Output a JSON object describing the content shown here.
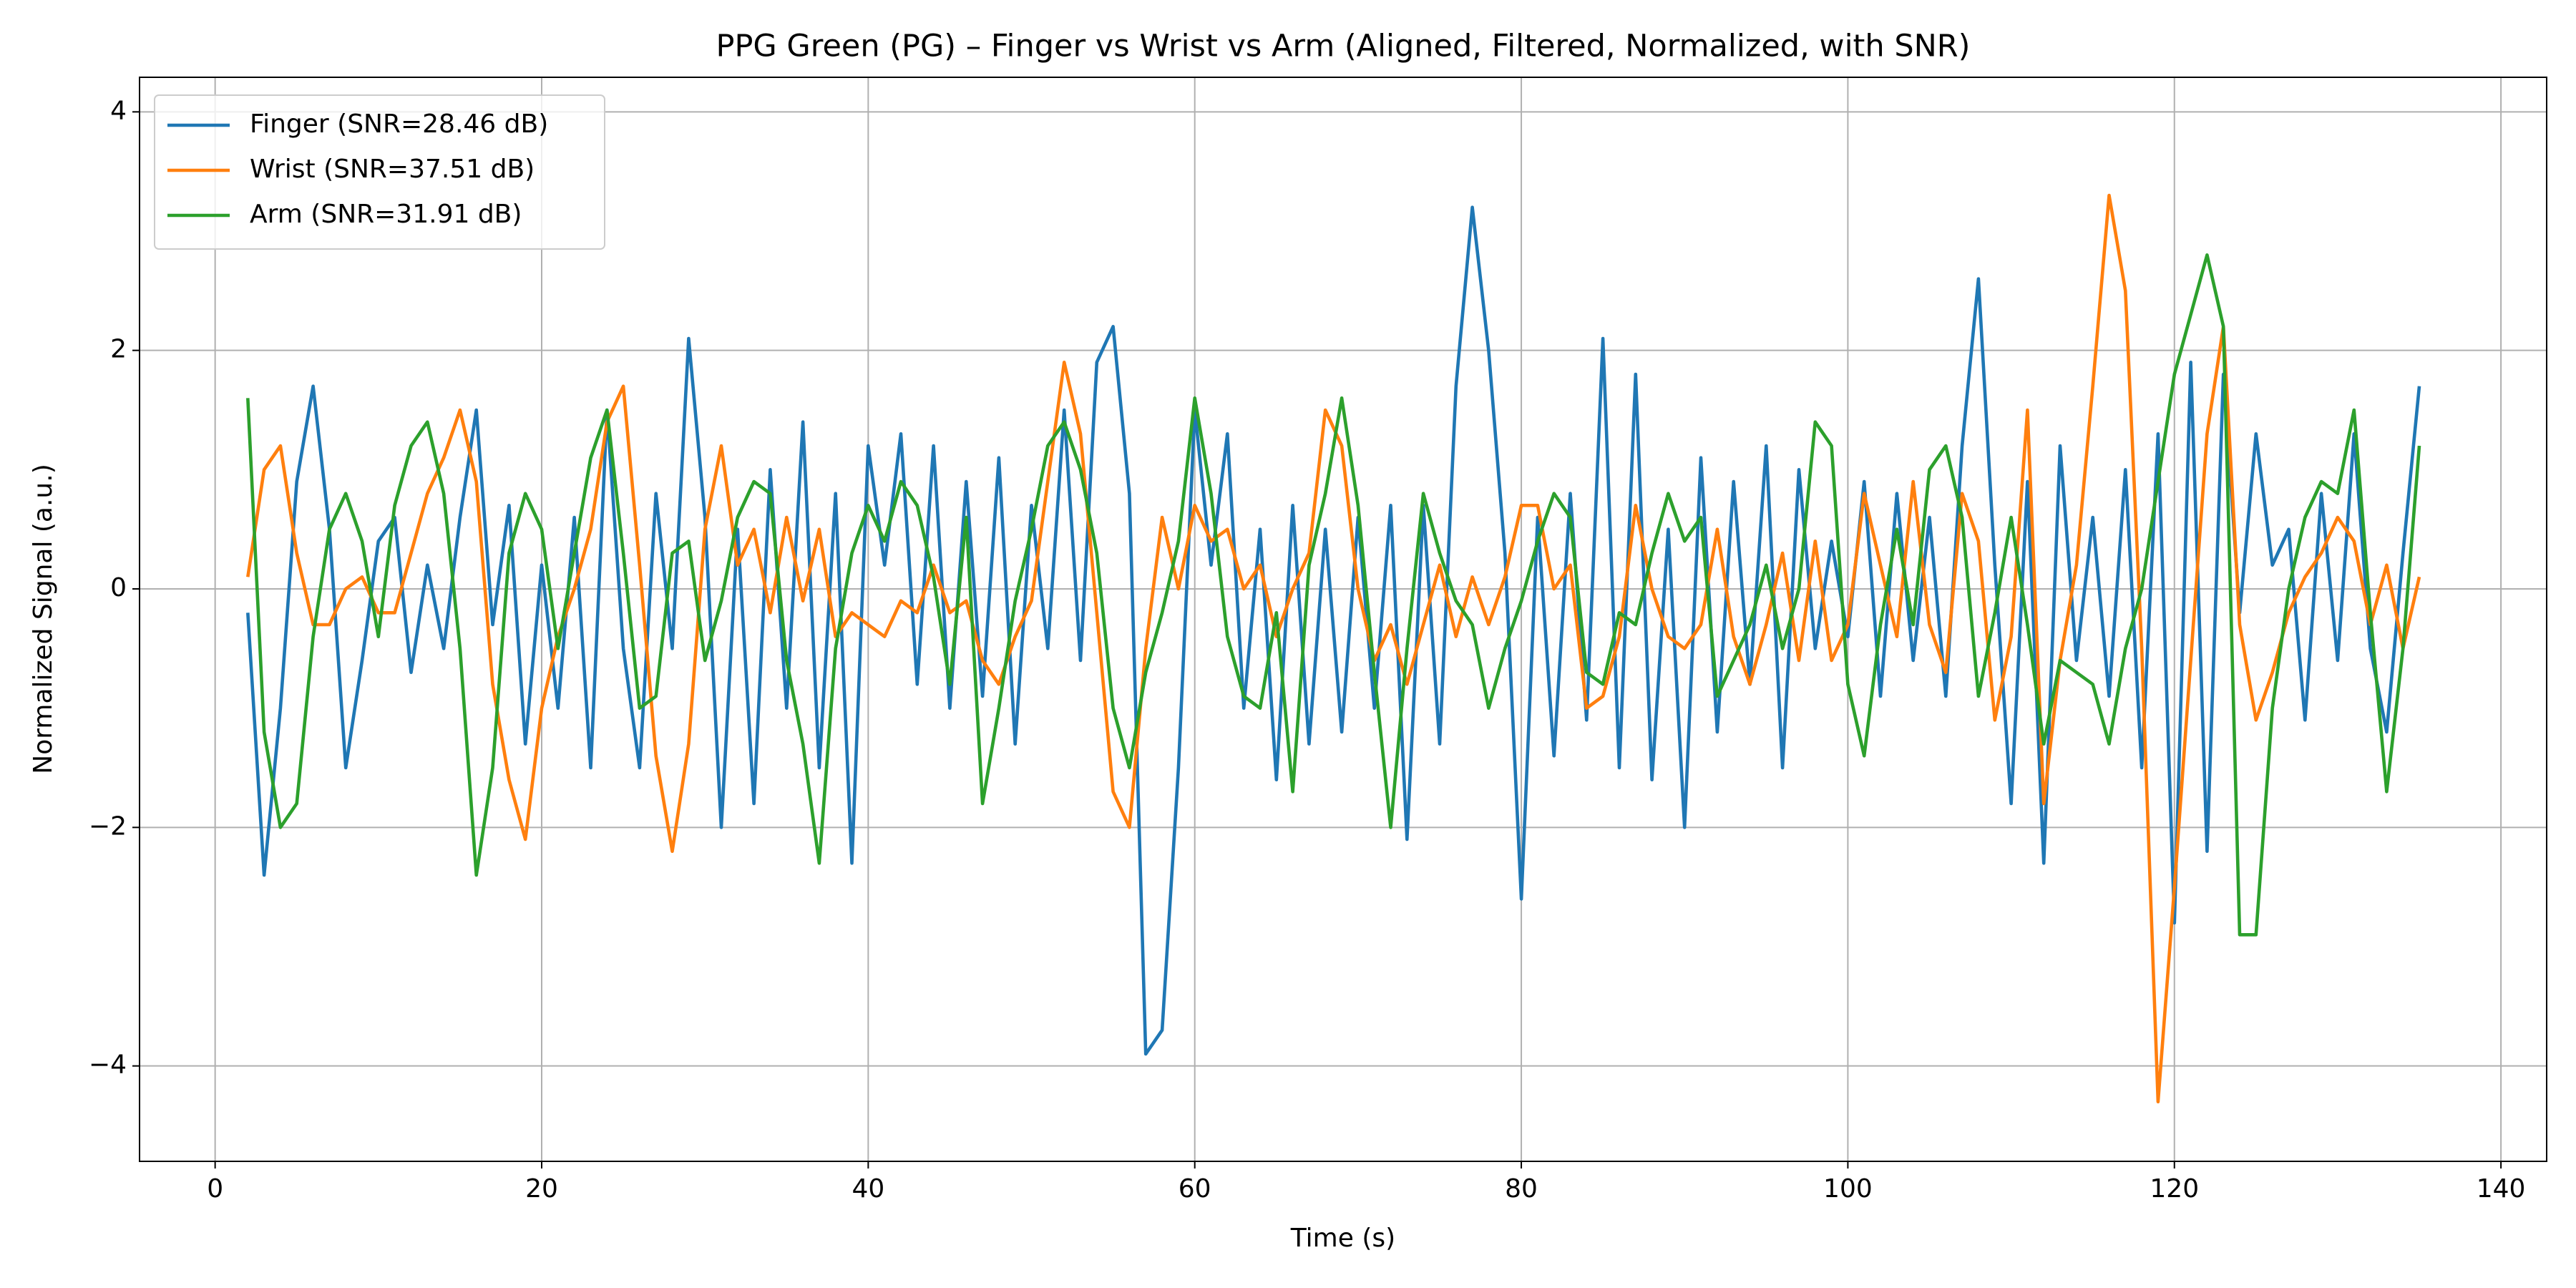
{
  "chart_data": {
    "type": "line",
    "title": "PPG Green (PG) – Finger vs Wrist vs Arm (Aligned, Filtered, Normalized, with SNR)",
    "x_label": "Time (s)",
    "y_label": "Normalized Signal (a.u.)",
    "xlim": [
      -4.63,
      142.8
    ],
    "ylim": [
      -4.8,
      4.29
    ],
    "xticks": [
      0,
      20,
      40,
      60,
      80,
      100,
      120,
      140
    ],
    "yticks": [
      {
        "value": -4,
        "label": "−4"
      },
      {
        "value": -2,
        "label": "−2"
      },
      0,
      2,
      4
    ],
    "grid": true,
    "legend": "upper left",
    "x": [
      2,
      3,
      4,
      5,
      6,
      7,
      8,
      9,
      10,
      11,
      12,
      13,
      14,
      15,
      16,
      17,
      18,
      19,
      20,
      21,
      22,
      23,
      24,
      25,
      26,
      27,
      28,
      29,
      30,
      31,
      32,
      33,
      34,
      35,
      36,
      37,
      38,
      39,
      40,
      41,
      42,
      43,
      44,
      45,
      46,
      47,
      48,
      49,
      50,
      51,
      52,
      53,
      54,
      55,
      56,
      57,
      58,
      59,
      60,
      61,
      62,
      63,
      64,
      65,
      66,
      67,
      68,
      69,
      70,
      71,
      72,
      73,
      74,
      75,
      76,
      77,
      78,
      79,
      80,
      81,
      82,
      83,
      84,
      85,
      86,
      87,
      88,
      89,
      90,
      91,
      92,
      93,
      94,
      95,
      96,
      97,
      98,
      99,
      100,
      101,
      102,
      103,
      104,
      105,
      106,
      107,
      108,
      109,
      110,
      111,
      112,
      113,
      114,
      115,
      116,
      117,
      118,
      119,
      120,
      121,
      122,
      123,
      124,
      125,
      126,
      127,
      128,
      129,
      130,
      131,
      132,
      133,
      134,
      135
    ],
    "series": [
      {
        "name": "Finger (SNR=28.46 dB)",
        "color": "#1f77b4",
        "values": [
          -0.2,
          -2.4,
          -1.0,
          0.9,
          1.7,
          0.5,
          -1.5,
          -0.6,
          0.4,
          0.6,
          -0.7,
          0.2,
          -0.5,
          0.6,
          1.5,
          -0.3,
          0.7,
          -1.3,
          0.2,
          -1.0,
          0.6,
          -1.5,
          1.5,
          -0.5,
          -1.5,
          0.8,
          -0.5,
          2.1,
          0.6,
          -2.0,
          0.5,
          -1.8,
          1.0,
          -1.0,
          1.4,
          -1.5,
          0.8,
          -2.3,
          1.2,
          0.2,
          1.3,
          -0.8,
          1.2,
          -1.0,
          0.9,
          -0.9,
          1.1,
          -1.3,
          0.7,
          -0.5,
          1.5,
          -0.6,
          1.9,
          2.2,
          0.8,
          -3.9,
          -3.7,
          -1.5,
          1.5,
          0.2,
          1.3,
          -1.0,
          0.5,
          -1.6,
          0.7,
          -1.3,
          0.5,
          -1.2,
          0.6,
          -1.0,
          0.7,
          -2.1,
          0.7,
          -1.3,
          1.7,
          3.2,
          2.0,
          0.3,
          -2.6,
          0.6,
          -1.4,
          0.8,
          -1.1,
          2.1,
          -1.5,
          1.8,
          -1.6,
          0.5,
          -2.0,
          1.1,
          -1.2,
          0.9,
          -0.8,
          1.2,
          -1.5,
          1.0,
          -0.5,
          0.4,
          -0.4,
          0.9,
          -0.9,
          0.8,
          -0.6,
          0.6,
          -0.9,
          1.2,
          2.6,
          0.2,
          -1.8,
          0.9,
          -2.3,
          1.2,
          -0.6,
          0.6,
          -0.9,
          1.0,
          -1.5,
          1.3,
          -2.8,
          1.9,
          -2.2,
          1.8,
          -0.2,
          1.3,
          0.2,
          0.5,
          -1.1,
          0.8,
          -0.6,
          1.3,
          -0.5,
          -1.2,
          0.3,
          1.7
        ]
      },
      {
        "name": "Wrist (SNR=37.51 dB)",
        "color": "#ff7f0e",
        "values": [
          0.1,
          1.0,
          1.2,
          0.3,
          -0.3,
          -0.3,
          0.0,
          0.1,
          -0.2,
          -0.2,
          0.3,
          0.8,
          1.1,
          1.5,
          0.9,
          -0.8,
          -1.6,
          -2.1,
          -1.0,
          -0.4,
          0.0,
          0.5,
          1.4,
          1.7,
          0.2,
          -1.4,
          -2.2,
          -1.3,
          0.5,
          1.2,
          0.2,
          0.5,
          -0.2,
          0.6,
          -0.1,
          0.5,
          -0.4,
          -0.2,
          -0.3,
          -0.4,
          -0.1,
          -0.2,
          0.2,
          -0.2,
          -0.1,
          -0.6,
          -0.8,
          -0.4,
          -0.1,
          0.9,
          1.9,
          1.3,
          -0.2,
          -1.7,
          -2.0,
          -0.5,
          0.6,
          0.0,
          0.7,
          0.4,
          0.5,
          0.0,
          0.2,
          -0.4,
          0.0,
          0.3,
          1.5,
          1.2,
          0.0,
          -0.6,
          -0.3,
          -0.8,
          -0.3,
          0.2,
          -0.4,
          0.1,
          -0.3,
          0.1,
          0.7,
          0.7,
          0.0,
          0.2,
          -1.0,
          -0.9,
          -0.4,
          0.7,
          0.0,
          -0.4,
          -0.5,
          -0.3,
          0.5,
          -0.4,
          -0.8,
          -0.3,
          0.3,
          -0.6,
          0.4,
          -0.6,
          -0.3,
          0.8,
          0.2,
          -0.4,
          0.9,
          -0.3,
          -0.7,
          0.8,
          0.4,
          -1.1,
          -0.4,
          1.5,
          -1.8,
          -0.6,
          0.2,
          1.7,
          3.3,
          2.5,
          -0.5,
          -4.3,
          -2.5,
          -0.6,
          1.3,
          2.2,
          -0.3,
          -1.1,
          -0.7,
          -0.2,
          0.1,
          0.3,
          0.6,
          0.4,
          -0.3,
          0.2,
          -0.5,
          0.1
        ]
      },
      {
        "name": "Arm (SNR=31.91 dB)",
        "color": "#2ca02c",
        "values": [
          1.6,
          -1.2,
          -2.0,
          -1.8,
          -0.4,
          0.5,
          0.8,
          0.4,
          -0.4,
          0.7,
          1.2,
          1.4,
          0.8,
          -0.5,
          -2.4,
          -1.5,
          0.3,
          0.8,
          0.5,
          -0.5,
          0.3,
          1.1,
          1.5,
          0.3,
          -1.0,
          -0.9,
          0.3,
          0.4,
          -0.6,
          -0.1,
          0.6,
          0.9,
          0.8,
          -0.6,
          -1.3,
          -2.3,
          -0.5,
          0.3,
          0.7,
          0.4,
          0.9,
          0.7,
          0.1,
          -0.8,
          0.6,
          -1.8,
          -1.0,
          -0.1,
          0.5,
          1.2,
          1.4,
          1.0,
          0.3,
          -1.0,
          -1.5,
          -0.7,
          -0.2,
          0.4,
          1.6,
          0.8,
          -0.4,
          -0.9,
          -1.0,
          -0.2,
          -1.7,
          0.2,
          0.8,
          1.6,
          0.7,
          -0.7,
          -2.0,
          -0.5,
          0.8,
          0.3,
          -0.1,
          -0.3,
          -1.0,
          -0.5,
          -0.1,
          0.4,
          0.8,
          0.6,
          -0.7,
          -0.8,
          -0.2,
          -0.3,
          0.3,
          0.8,
          0.4,
          0.6,
          -0.9,
          -0.6,
          -0.3,
          0.2,
          -0.5,
          0.0,
          1.4,
          1.2,
          -0.8,
          -1.4,
          -0.3,
          0.5,
          -0.3,
          1.0,
          1.2,
          0.6,
          -0.9,
          -0.2,
          0.6,
          -0.3,
          -1.3,
          -0.6,
          -0.7,
          -0.8,
          -1.3,
          -0.5,
          0.0,
          0.9,
          1.8,
          2.3,
          2.8,
          2.2,
          -2.9,
          -2.9,
          -1.0,
          0.0,
          0.6,
          0.9,
          0.8,
          1.5,
          -0.2,
          -1.7,
          -0.5,
          1.2
        ]
      }
    ]
  }
}
